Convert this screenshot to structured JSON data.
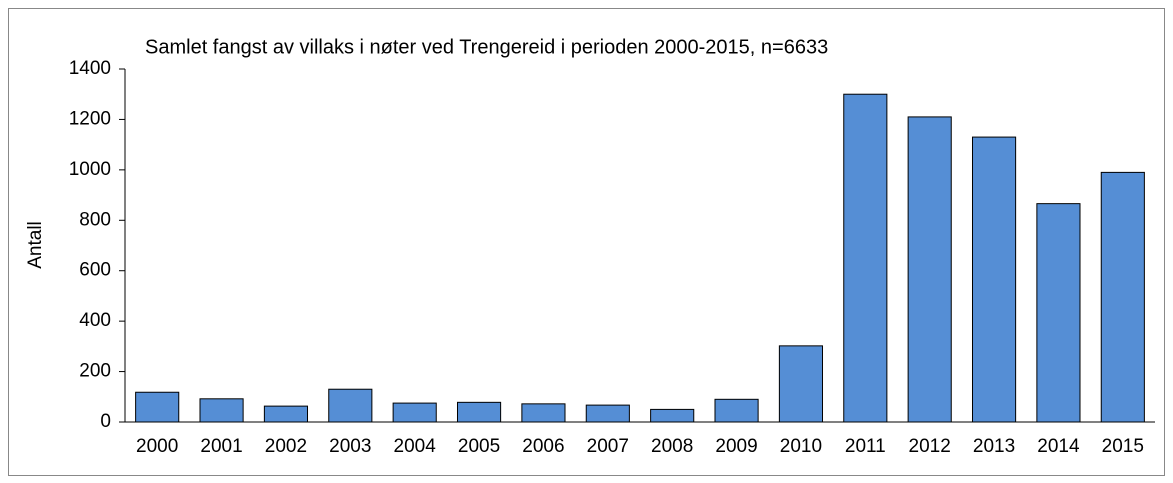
{
  "chart_data": {
    "type": "bar",
    "title": "Samlet fangst av villaks i nøter ved Trengereid i perioden 2000-2015, n=6633",
    "y_label": "Antall",
    "categories": [
      "2000",
      "2001",
      "2002",
      "2003",
      "2004",
      "2005",
      "2006",
      "2007",
      "2008",
      "2009",
      "2010",
      "2011",
      "2012",
      "2013",
      "2014",
      "2015"
    ],
    "values": [
      118,
      92,
      63,
      130,
      75,
      78,
      72,
      67,
      50,
      90,
      302,
      1300,
      1210,
      1130,
      866,
      990
    ],
    "color": "#558ed5",
    "ylim": [
      0,
      1400
    ],
    "yticks": [
      0,
      200,
      400,
      600,
      800,
      1000,
      1200,
      1400
    ],
    "grid": false
  }
}
